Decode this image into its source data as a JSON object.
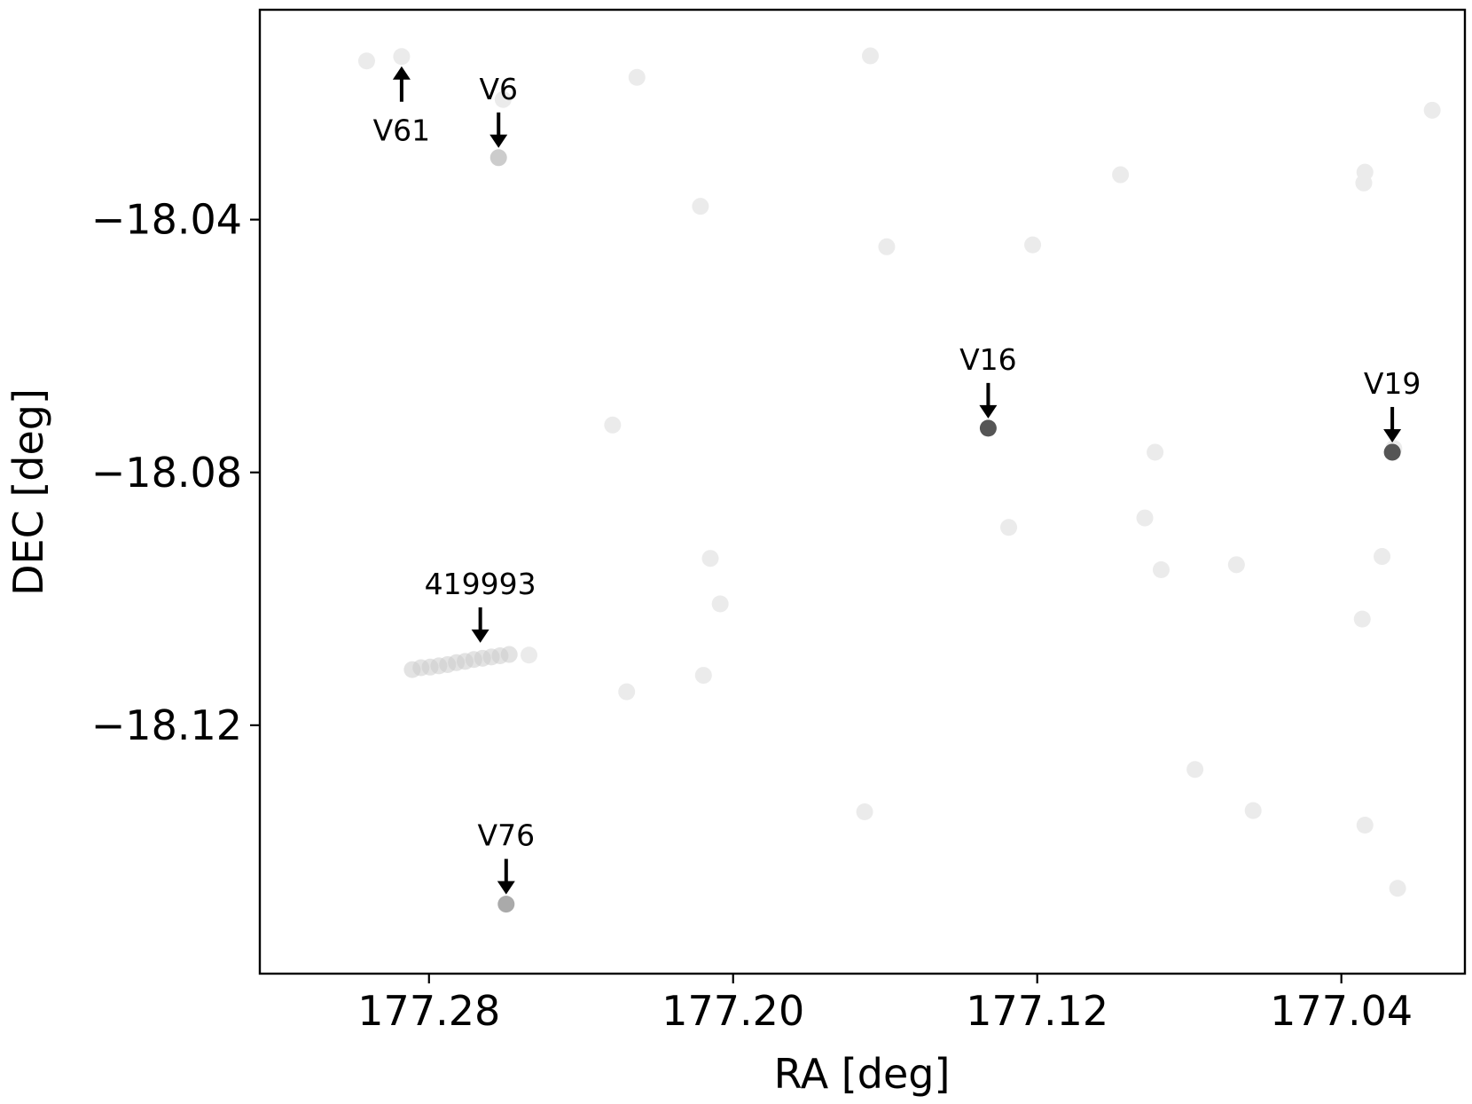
{
  "chart_data": {
    "type": "scatter",
    "xlabel": "RA [deg]",
    "ylabel": "DEC [deg]",
    "xlim": [
      177.3245,
      177.0075
    ],
    "ylim": [
      -18.1593,
      -18.0068
    ],
    "x_invert": true,
    "xticks": [
      177.28,
      177.2,
      177.12,
      177.04
    ],
    "xtick_labels": [
      "177.28",
      "177.20",
      "177.12",
      "177.04"
    ],
    "yticks": [
      -18.04,
      -18.08,
      -18.12
    ],
    "ytick_labels": [
      "−18.04",
      "−18.08",
      "−18.12"
    ],
    "grid": false,
    "colors": {
      "faint": "#ebebeb",
      "mid": "#cccccc",
      "gray": "#aaaaaa",
      "dark": "#555555",
      "arrow": "#000000"
    },
    "points": [
      {
        "ra": 177.2964,
        "dec": -18.0149,
        "shade": "faint"
      },
      {
        "ra": 177.2605,
        "dec": -18.021,
        "shade": "faint"
      },
      {
        "ra": 177.2253,
        "dec": -18.0175,
        "shade": "faint"
      },
      {
        "ra": 177.1639,
        "dec": -18.0141,
        "shade": "faint"
      },
      {
        "ra": 177.2086,
        "dec": -18.0379,
        "shade": "faint"
      },
      {
        "ra": 177.1596,
        "dec": -18.0443,
        "shade": "faint"
      },
      {
        "ra": 177.1212,
        "dec": -18.044,
        "shade": "faint"
      },
      {
        "ra": 177.0981,
        "dec": -18.0329,
        "shade": "faint"
      },
      {
        "ra": 177.0338,
        "dec": -18.0325,
        "shade": "faint"
      },
      {
        "ra": 177.0161,
        "dec": -18.0227,
        "shade": "faint"
      },
      {
        "ra": 177.0341,
        "dec": -18.0342,
        "shade": "faint"
      },
      {
        "ra": 177.2317,
        "dec": -18.0725,
        "shade": "faint"
      },
      {
        "ra": 177.089,
        "dec": -18.0768,
        "shade": "faint"
      },
      {
        "ra": 177.0262,
        "dec": -18.0762,
        "shade": "faint"
      },
      {
        "ra": 177.1275,
        "dec": -18.0887,
        "shade": "faint"
      },
      {
        "ra": 177.0917,
        "dec": -18.0872,
        "shade": "faint"
      },
      {
        "ra": 177.206,
        "dec": -18.0936,
        "shade": "faint"
      },
      {
        "ra": 177.0874,
        "dec": -18.0954,
        "shade": "faint"
      },
      {
        "ra": 177.0676,
        "dec": -18.0946,
        "shade": "faint"
      },
      {
        "ra": 177.0293,
        "dec": -18.0933,
        "shade": "faint"
      },
      {
        "ra": 177.2034,
        "dec": -18.1008,
        "shade": "faint"
      },
      {
        "ra": 177.0345,
        "dec": -18.1032,
        "shade": "faint"
      },
      {
        "ra": 177.2537,
        "dec": -18.1089,
        "shade": "faint"
      },
      {
        "ra": 177.2078,
        "dec": -18.1121,
        "shade": "faint"
      },
      {
        "ra": 177.228,
        "dec": -18.1147,
        "shade": "faint"
      },
      {
        "ra": 177.0785,
        "dec": -18.127,
        "shade": "faint"
      },
      {
        "ra": 177.1654,
        "dec": -18.1337,
        "shade": "faint"
      },
      {
        "ra": 177.0632,
        "dec": -18.1335,
        "shade": "faint"
      },
      {
        "ra": 177.0338,
        "dec": -18.1358,
        "shade": "faint"
      },
      {
        "ra": 177.0252,
        "dec": -18.1458,
        "shade": "faint"
      },
      {
        "ra": 177.2872,
        "dec": -18.0142,
        "shade": "faint"
      },
      {
        "ra": 177.2617,
        "dec": -18.0302,
        "shade": "mid"
      },
      {
        "ra": 177.1329,
        "dec": -18.073,
        "shade": "dark"
      },
      {
        "ra": 177.0266,
        "dec": -18.0768,
        "shade": "dark"
      },
      {
        "ra": 177.2597,
        "dec": -18.1483,
        "shade": "gray"
      }
    ],
    "trail": {
      "ra": [
        177.2844,
        177.2821,
        177.2797,
        177.2774,
        177.2751,
        177.2728,
        177.2705,
        177.2682,
        177.2659,
        177.2636,
        177.2613,
        177.2589
      ],
      "dec": [
        -18.1112,
        -18.1109,
        -18.1108,
        -18.1106,
        -18.1104,
        -18.1101,
        -18.1099,
        -18.1096,
        -18.1094,
        -18.1092,
        -18.109,
        -18.1088
      ],
      "shade": "mid"
    },
    "annotations": [
      {
        "label": "V61",
        "ra": 177.2872,
        "dec": -18.0142,
        "direction": "up"
      },
      {
        "label": "V6",
        "ra": 177.2617,
        "dec": -18.0302,
        "direction": "down"
      },
      {
        "label": "V16",
        "ra": 177.1329,
        "dec": -18.073,
        "direction": "down"
      },
      {
        "label": "V19",
        "ra": 177.0266,
        "dec": -18.0768,
        "direction": "down"
      },
      {
        "label": "419993",
        "ra": 177.2665,
        "dec": -18.1085,
        "direction": "down"
      },
      {
        "label": "V76",
        "ra": 177.2597,
        "dec": -18.1483,
        "direction": "down"
      }
    ]
  }
}
